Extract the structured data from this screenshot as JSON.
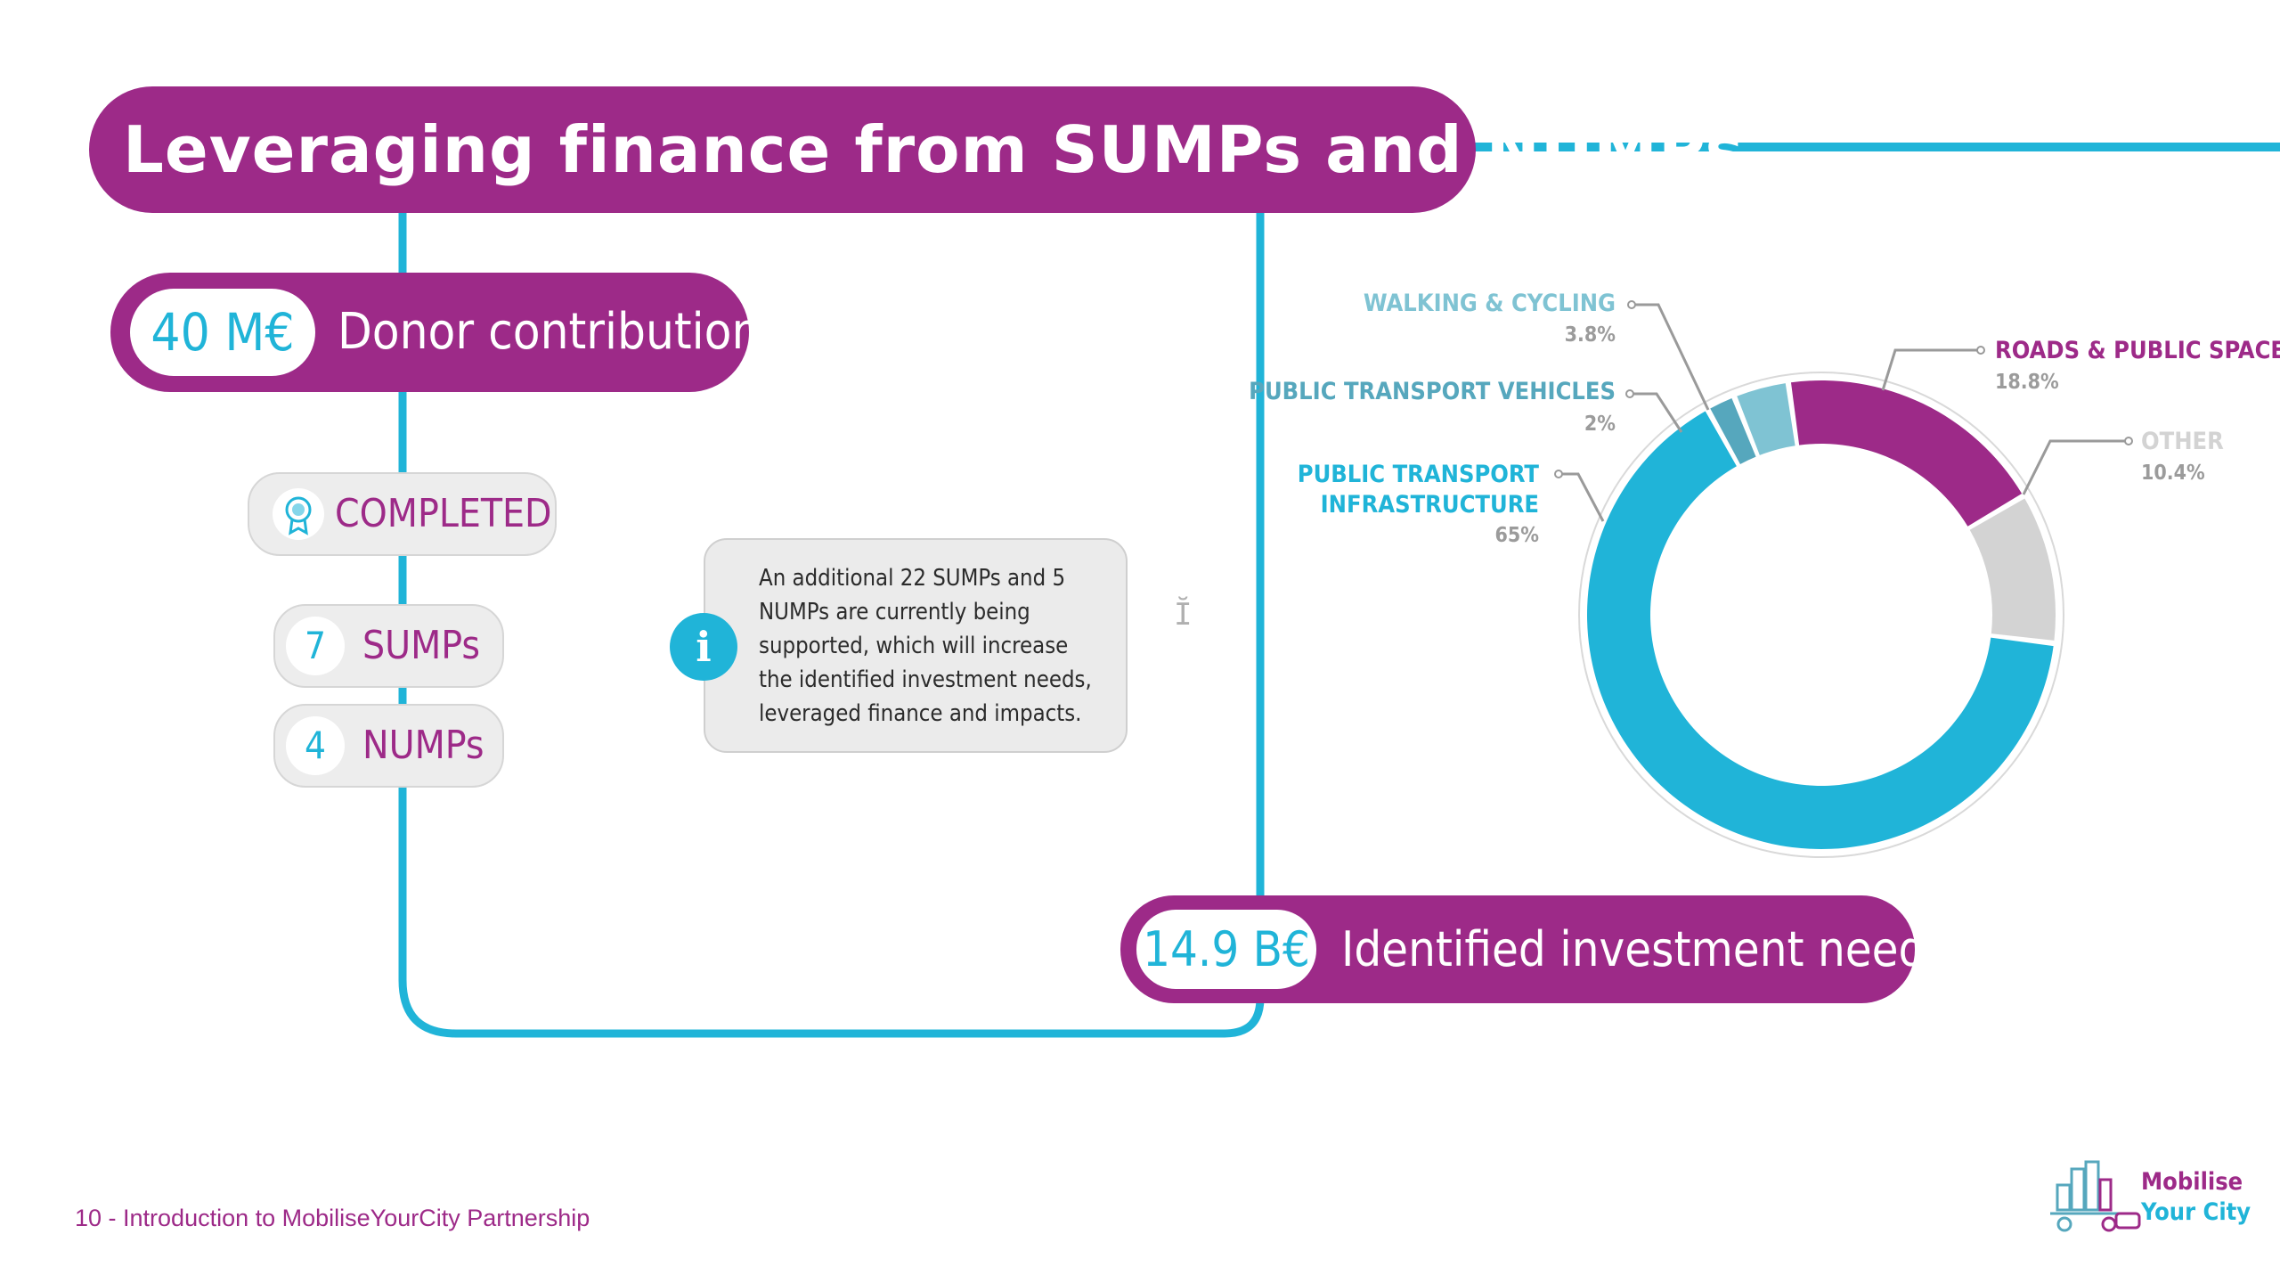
{
  "title": "Leveraging finance from SUMPs and NUMPs",
  "donor": {
    "value": "40 M€",
    "label": "Donor contribution"
  },
  "status": {
    "label": "COMPLETED",
    "icon": "award-icon"
  },
  "counts": [
    {
      "number": "7",
      "label": "SUMPs"
    },
    {
      "number": "4",
      "label": "NUMPs"
    }
  ],
  "info": {
    "icon": "info-icon",
    "lines": [
      "An additional 22 SUMPs and 5",
      "NUMPs are currently being",
      "supported, which will increase",
      "the identified investment needs,",
      "leveraged finance and impacts."
    ]
  },
  "investment": {
    "value": "14.9 B€",
    "label": "Identified investment needs"
  },
  "footer": {
    "text": "10 - Introduction to MobiliseYourCity Partnership"
  },
  "logo": {
    "line1": "Mobilise",
    "line2": "Your City"
  },
  "colors": {
    "magenta": "#9d2a88",
    "cyan": "#20b4d8",
    "gray": "#d3d3d3",
    "teal": "#7fc3d3",
    "darkteal": "#56a7bd"
  },
  "chart_data": {
    "type": "pie",
    "title": "Identified investment needs",
    "categories": [
      "Public transport infrastructure",
      "Public transport vehicles",
      "Walking & cycling",
      "Roads & public space",
      "Other"
    ],
    "values": [
      65,
      2,
      3.8,
      18.8,
      10.4
    ],
    "unit": "%",
    "labels": [
      {
        "lines": [
          "PUBLIC TRANSPORT",
          "INFRASTRUCTURE"
        ],
        "pct": "65%",
        "color": "#20b4d8"
      },
      {
        "lines": [
          "PUBLIC TRANSPORT VEHICLES"
        ],
        "pct": "2%",
        "color": "#56a7bd"
      },
      {
        "lines": [
          "WALKING & CYCLING"
        ],
        "pct": "3.8%",
        "color": "#7fc3d3"
      },
      {
        "lines": [
          "ROADS & PUBLIC SPACE"
        ],
        "pct": "18.8%",
        "color": "#9d2a88"
      },
      {
        "lines": [
          "OTHER"
        ],
        "pct": "10.4%",
        "color": "#d3d3d3"
      }
    ]
  }
}
